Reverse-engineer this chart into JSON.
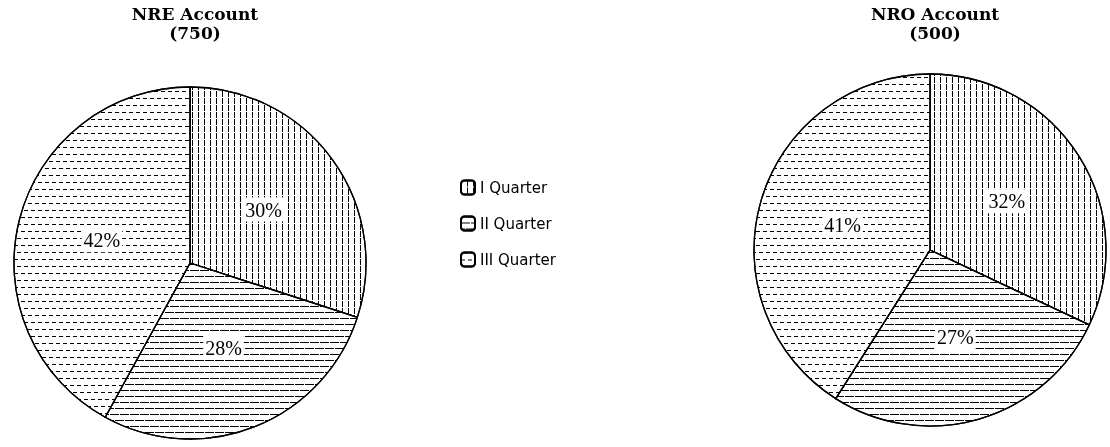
{
  "chart_data": [
    {
      "type": "pie",
      "title": "NRE Account",
      "subtitle": "(750)",
      "categories": [
        "I Quarter",
        "II Quarter",
        "III Quarter"
      ],
      "values": [
        30,
        28,
        42
      ],
      "value_labels": [
        "30%",
        "28%",
        "42%"
      ],
      "colors": [
        "#ffffff",
        "#ffffff",
        "#ffffff"
      ],
      "legend": "right"
    },
    {
      "type": "pie",
      "title": "NRO Account",
      "subtitle": "(500)",
      "categories": [
        null,
        null,
        null
      ],
      "values": [
        32,
        27,
        41
      ],
      "value_labels": [
        "32%",
        "27%",
        "41%"
      ],
      "colors": [
        "#ffffff",
        "#ffffff",
        "#ffffff"
      ]
    }
  ]
}
